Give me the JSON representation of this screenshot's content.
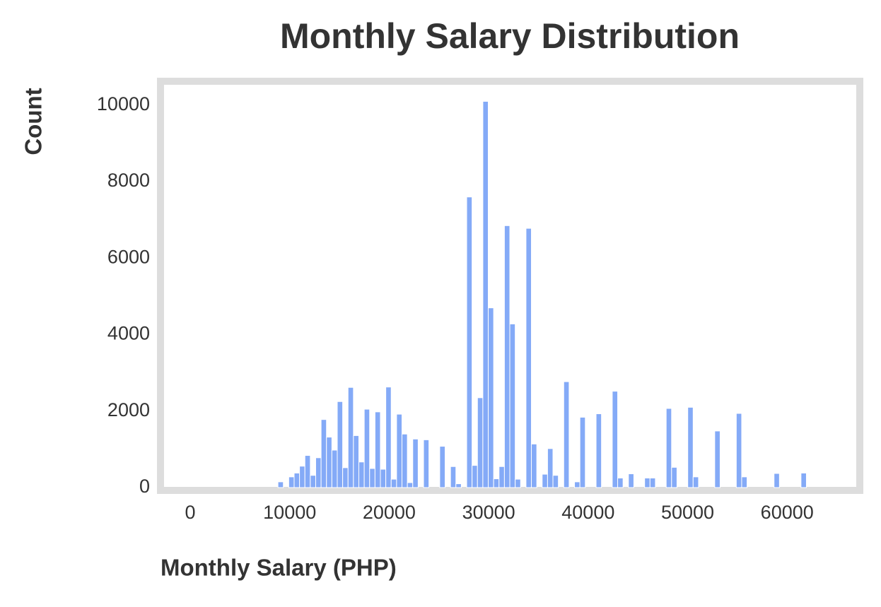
{
  "chart_data": {
    "type": "histogram",
    "title": "Monthly Salary Distribution",
    "x_label": "Monthly Salary (PHP)",
    "y_label": "Count",
    "color": "#84aaf7",
    "bins": [
      8820,
      9362,
      9904,
      10446,
      10988,
      11530,
      12072,
      12614,
      13156,
      13698,
      14240,
      14782,
      15324,
      15866,
      16408,
      16950,
      17492,
      18034,
      18576,
      19118,
      19660,
      20202,
      20744,
      21286,
      21828,
      22370,
      22912,
      23454,
      23996,
      24538,
      25080,
      25622,
      26164,
      26706,
      27248,
      27790,
      28332,
      28874,
      29416,
      29958,
      30500,
      31042,
      31584,
      32126,
      32668,
      33210,
      33752,
      34294,
      34836,
      35378,
      35920,
      36462,
      37004,
      37546,
      38088,
      38630,
      39172,
      39714,
      40256,
      40798,
      41340,
      41882,
      42424,
      42966,
      43508,
      44050,
      44592,
      45134,
      45676,
      46218,
      46760,
      47302,
      47844,
      48386,
      48928,
      49470,
      50012,
      50554,
      51096,
      51638,
      52180,
      52722,
      53264,
      53806,
      54348,
      54890,
      55432,
      55974,
      56516,
      57058,
      57600,
      58142,
      58684,
      59226,
      59768,
      60310,
      60852,
      61394,
      61936
    ],
    "values": [
      150,
      0,
      280,
      380,
      560,
      840,
      320,
      780,
      1780,
      1320,
      980,
      2250,
      520,
      2620,
      1360,
      670,
      2050,
      500,
      1980,
      480,
      2630,
      220,
      1920,
      1400,
      130,
      1270,
      0,
      1250,
      0,
      0,
      1080,
      0,
      550,
      100,
      0,
      7600,
      580,
      2350,
      10100,
      4700,
      230,
      550,
      6850,
      4280,
      220,
      0,
      6780,
      1140,
      0,
      350,
      1020,
      320,
      0,
      2770,
      0,
      150,
      1840,
      0,
      0,
      1930,
      0,
      0,
      2520,
      250,
      0,
      360,
      0,
      0,
      250,
      250,
      0,
      0,
      2070,
      530,
      0,
      0,
      2100,
      280,
      0,
      0,
      0,
      1480,
      0,
      0,
      0,
      1940,
      280,
      0,
      0,
      0,
      0,
      0,
      370,
      0,
      0,
      0,
      0,
      380
    ],
    "xlim": [
      -2772,
      67020
    ],
    "ylim": [
      0,
      10570
    ],
    "xticks": [
      0,
      10000,
      20000,
      30000,
      40000,
      50000,
      60000
    ],
    "yticks": [
      0,
      2000,
      4000,
      6000,
      8000,
      10000
    ],
    "grid": false
  }
}
